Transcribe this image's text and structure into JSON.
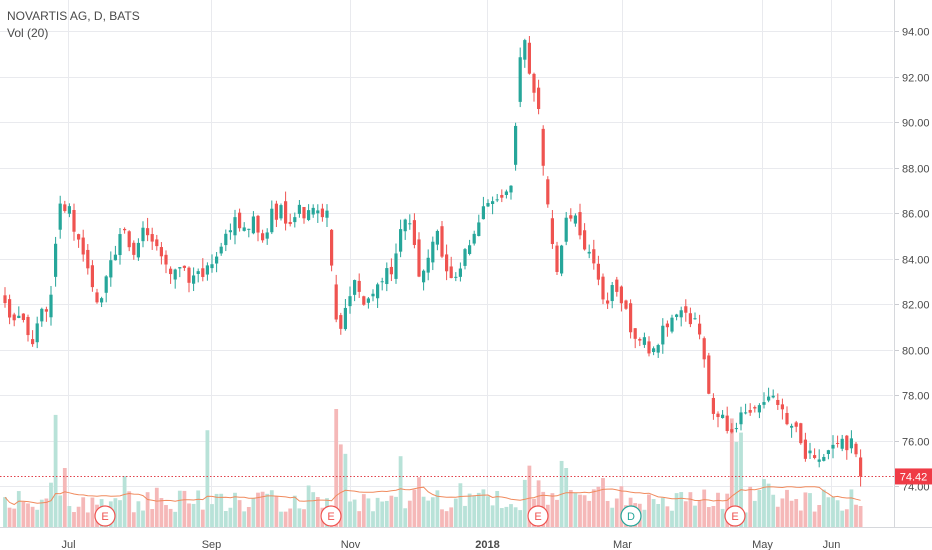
{
  "legend": {
    "symbol_line": "NOVARTIS AG, D, BATS",
    "volume_line": "Vol (20)"
  },
  "price_tag": "74.42",
  "colors": {
    "up": "#26a69a",
    "down": "#ef5350",
    "vol_up": "#b8e2d8",
    "vol_down": "#f5b8b8",
    "vol_ma": "#f08a5d",
    "grid": "#e9eaee",
    "price_line": "#e0404a"
  },
  "chart_data": {
    "type": "candlestick",
    "title": "NOVARTIS AG, D, BATS",
    "ylim": [
      73,
      95
    ],
    "y_ticks": [
      "74.00",
      "76.00",
      "78.00",
      "80.00",
      "82.00",
      "84.00",
      "86.00",
      "88.00",
      "90.00",
      "92.00",
      "94.00"
    ],
    "x_ticks": [
      {
        "label": "Jul",
        "bold": false
      },
      {
        "label": "Sep",
        "bold": false
      },
      {
        "label": "Nov",
        "bold": false
      },
      {
        "label": "2018",
        "bold": true
      },
      {
        "label": "Mar",
        "bold": false
      },
      {
        "label": "May",
        "bold": false
      },
      {
        "label": "Jun",
        "bold": false
      }
    ],
    "last_price": 74.42,
    "close_path": [
      [
        0,
        81.8
      ],
      [
        4,
        81.2
      ],
      [
        6,
        80.5
      ],
      [
        8,
        81.5
      ],
      [
        10,
        82.4
      ],
      [
        12,
        86.2
      ],
      [
        14,
        86.0
      ],
      [
        16,
        84.5
      ],
      [
        18,
        83.5
      ],
      [
        20,
        82.0
      ],
      [
        22,
        83.0
      ],
      [
        24,
        84.5
      ],
      [
        26,
        85.0
      ],
      [
        28,
        84.2
      ],
      [
        30,
        85.3
      ],
      [
        32,
        85.0
      ],
      [
        34,
        84.2
      ],
      [
        36,
        83.3
      ],
      [
        38,
        83.8
      ],
      [
        40,
        83.0
      ],
      [
        42,
        83.5
      ],
      [
        44,
        83.4
      ],
      [
        46,
        83.8
      ],
      [
        48,
        85.0
      ],
      [
        50,
        85.8
      ],
      [
        52,
        85.5
      ],
      [
        54,
        85.6
      ],
      [
        56,
        85.0
      ],
      [
        58,
        85.9
      ],
      [
        60,
        86.2
      ],
      [
        62,
        85.3
      ],
      [
        64,
        86.2
      ],
      [
        66,
        85.9
      ],
      [
        68,
        86.0
      ],
      [
        70,
        85.8
      ],
      [
        71,
        83.5
      ],
      [
        72,
        81.0
      ],
      [
        73,
        80.8
      ],
      [
        74,
        82.0
      ],
      [
        76,
        83.0
      ],
      [
        78,
        82.0
      ],
      [
        80,
        82.5
      ],
      [
        82,
        83.0
      ],
      [
        84,
        83.5
      ],
      [
        86,
        85.0
      ],
      [
        88,
        85.8
      ],
      [
        90,
        83.0
      ],
      [
        92,
        84.0
      ],
      [
        94,
        85.0
      ],
      [
        96,
        83.4
      ],
      [
        98,
        83.3
      ],
      [
        100,
        84.5
      ],
      [
        102,
        85.2
      ],
      [
        104,
        86.2
      ],
      [
        106,
        86.6
      ],
      [
        108,
        86.8
      ],
      [
        110,
        87.1
      ],
      [
        112,
        92.5
      ],
      [
        113,
        93.8
      ],
      [
        114,
        92.2
      ],
      [
        115,
        91.0
      ],
      [
        116,
        90.5
      ],
      [
        117,
        88.0
      ],
      [
        118,
        86.5
      ],
      [
        119,
        84.5
      ],
      [
        120,
        83.5
      ],
      [
        122,
        85.5
      ],
      [
        124,
        86.0
      ],
      [
        126,
        84.5
      ],
      [
        128,
        83.5
      ],
      [
        130,
        82.0
      ],
      [
        132,
        82.5
      ],
      [
        134,
        82.0
      ],
      [
        136,
        81.0
      ],
      [
        138,
        80.5
      ],
      [
        140,
        80.0
      ],
      [
        142,
        80.5
      ],
      [
        144,
        81.0
      ],
      [
        146,
        81.5
      ],
      [
        148,
        81.3
      ],
      [
        150,
        81.5
      ],
      [
        152,
        79.5
      ],
      [
        153,
        78.0
      ],
      [
        154,
        77.5
      ],
      [
        156,
        77.0
      ],
      [
        158,
        76.5
      ],
      [
        160,
        77.0
      ],
      [
        162,
        77.5
      ],
      [
        164,
        77.3
      ],
      [
        166,
        78.0
      ],
      [
        168,
        77.5
      ],
      [
        170,
        77.0
      ],
      [
        172,
        76.5
      ],
      [
        174,
        75.5
      ],
      [
        176,
        75.0
      ],
      [
        178,
        75.5
      ],
      [
        180,
        75.5
      ],
      [
        182,
        76.0
      ],
      [
        184,
        75.8
      ],
      [
        186,
        74.5
      ]
    ]
  }
}
